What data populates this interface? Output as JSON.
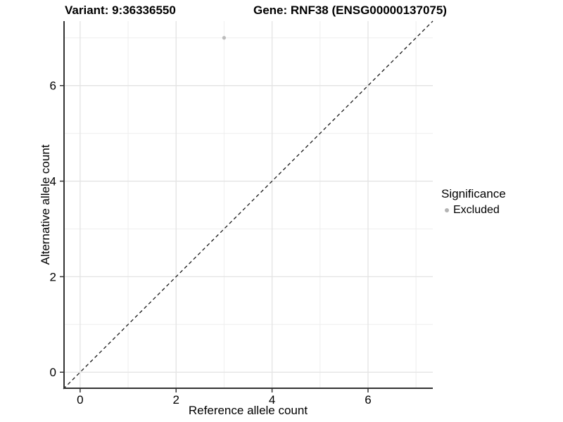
{
  "header": {
    "variant_title": "Variant: 9:36336550",
    "gene_title": "Gene: RNF38 (ENSG00000137075)"
  },
  "axes": {
    "x": {
      "label": "Reference allele count",
      "tick_labels": [
        "0",
        "2",
        "4",
        "6"
      ]
    },
    "y": {
      "label": "Alternative allele count",
      "tick_labels": [
        "0",
        "2",
        "4",
        "6"
      ]
    }
  },
  "legend": {
    "title": "Significance",
    "items": [
      {
        "label": "Excluded",
        "swatch": "circle",
        "color": "#b3b3b3"
      }
    ]
  },
  "colors": {
    "background": "#ffffff",
    "axis_line": "#333333",
    "tick_mark": "#333333",
    "grid_major": "#e3e3e3",
    "grid_minor": "#eeeeee",
    "point": "#bcbcbc",
    "reference_line": "#1a1a1a",
    "text": "#000000"
  },
  "chart_data": {
    "type": "scatter",
    "title": "Variant: 9:36336550 | Gene: RNF38 (ENSG00000137075)",
    "xlabel": "Reference allele count",
    "ylabel": "Alternative allele count",
    "xlim": [
      -0.35,
      7.35
    ],
    "ylim": [
      -0.35,
      7.35
    ],
    "x_major_ticks": [
      0,
      2,
      4,
      6
    ],
    "y_major_ticks": [
      0,
      2,
      4,
      6
    ],
    "x_minor_ticks": [
      1,
      3,
      5,
      7
    ],
    "y_minor_ticks": [
      1,
      3,
      5,
      7
    ],
    "grid": "major+minor",
    "legend_position": "right",
    "series": [
      {
        "name": "Excluded",
        "type": "scatter",
        "color": "#bcbcbc",
        "point_radius": 2.6,
        "points": [
          {
            "x": 3,
            "y": 7
          }
        ]
      }
    ],
    "reference_line": {
      "kind": "identity y=x",
      "style": "dashed",
      "x0": -0.35,
      "y0": -0.35,
      "x1": 7.35,
      "y1": 7.35
    }
  }
}
